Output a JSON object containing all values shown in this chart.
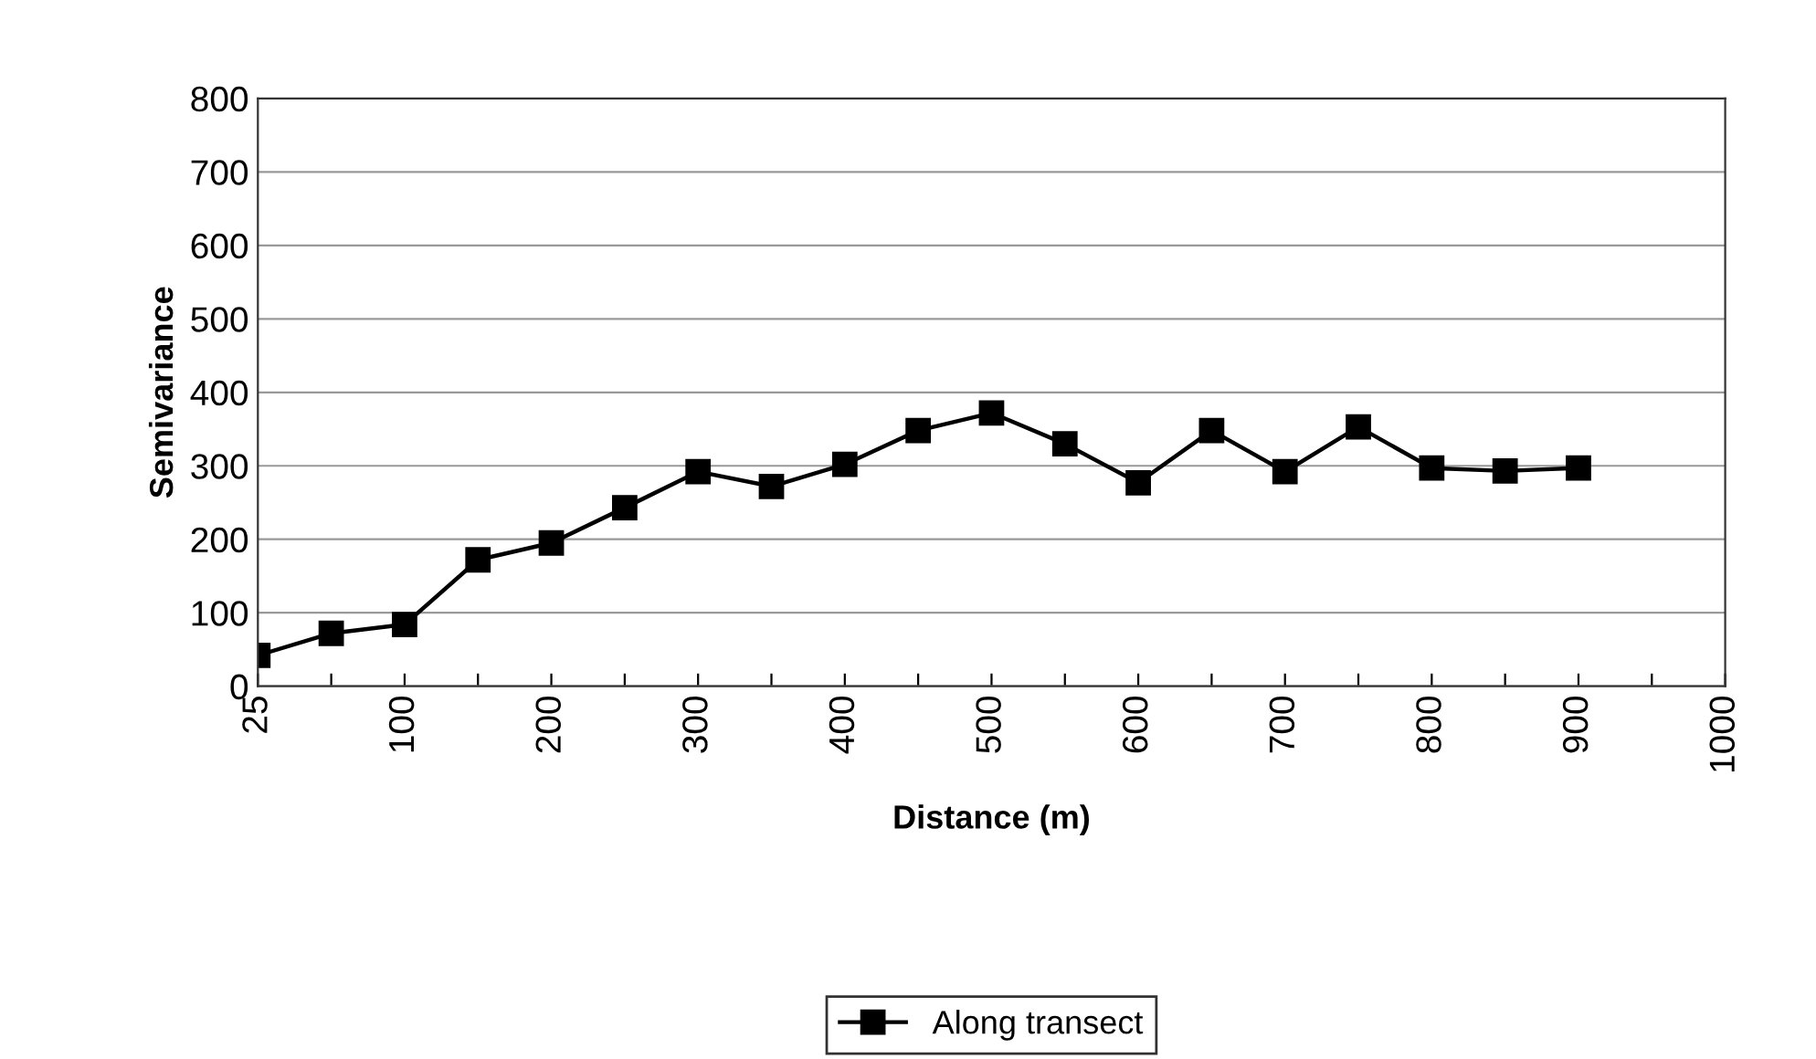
{
  "chart_data": {
    "type": "line",
    "xlabel": "Distance (m)",
    "ylabel": "Semivariance",
    "categories": [
      "25",
      null,
      "100",
      null,
      "200",
      null,
      "300",
      null,
      "400",
      null,
      "500",
      null,
      "600",
      null,
      "700",
      null,
      "800",
      null,
      "900",
      null,
      "1000"
    ],
    "series": [
      {
        "name": "Along transect",
        "color": "#000000",
        "values": [
          42,
          72,
          84,
          172,
          195,
          243,
          292,
          272,
          302,
          348,
          372,
          330,
          277,
          348,
          292,
          353,
          297,
          293,
          297,
          null,
          null
        ]
      }
    ],
    "ylim": [
      0,
      800
    ],
    "yticks": [
      0,
      100,
      200,
      300,
      400,
      500,
      600,
      700,
      800
    ],
    "grid": "y",
    "legend": "bottom",
    "marker": "square",
    "line_style": "solid"
  }
}
